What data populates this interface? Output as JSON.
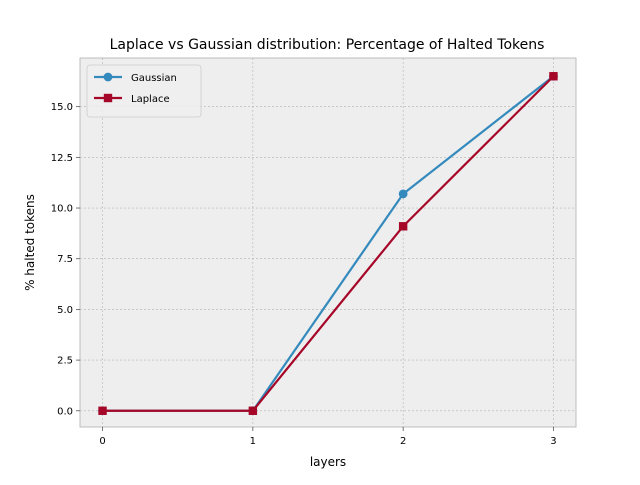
{
  "chart_data": {
    "type": "line",
    "title": "Laplace vs Gaussian distribution: Percentage of Halted Tokens",
    "xlabel": "layers",
    "ylabel": "% halted tokens",
    "x": [
      0,
      1,
      2,
      3
    ],
    "x_ticks": [
      "0",
      "1",
      "2",
      "3"
    ],
    "y_ticks": [
      "0.0",
      "2.5",
      "5.0",
      "7.5",
      "10.0",
      "12.5",
      "15.0"
    ],
    "xlim": [
      -0.15,
      3.15
    ],
    "ylim": [
      -0.8,
      17.4
    ],
    "grid": true,
    "legend_position": "upper-left",
    "background_color": "#eeeeee",
    "series": [
      {
        "name": "Gaussian",
        "values": [
          0.0,
          0.0,
          10.7,
          16.5
        ],
        "color": "#348abd",
        "marker": "circle"
      },
      {
        "name": "Laplace",
        "values": [
          0.0,
          0.0,
          9.1,
          16.5
        ],
        "color": "#a60628",
        "marker": "square"
      }
    ]
  }
}
